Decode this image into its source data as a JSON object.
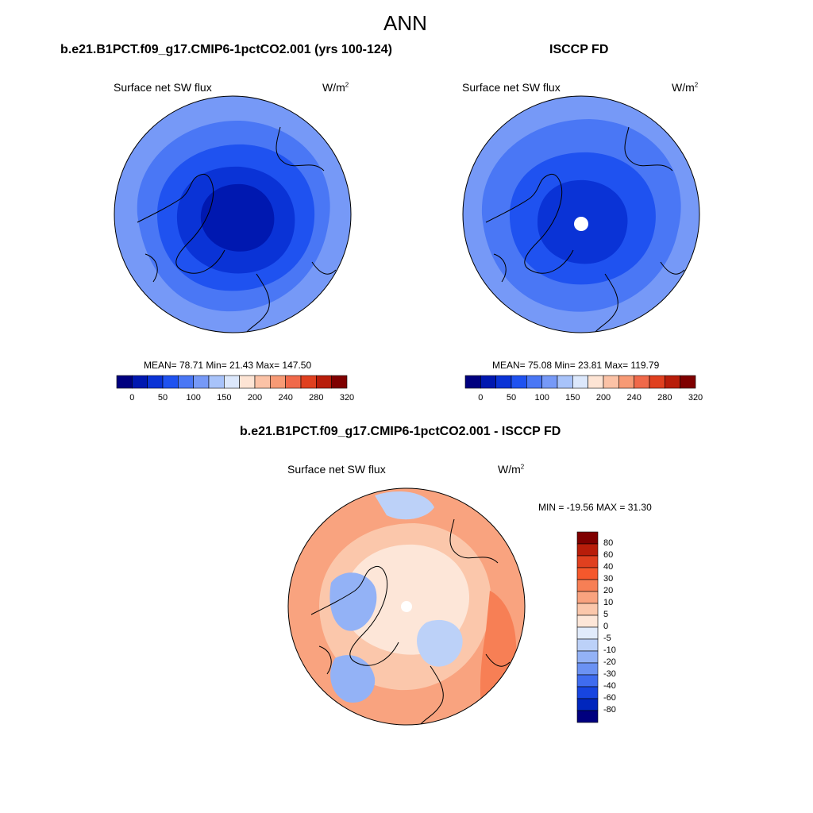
{
  "figure": {
    "title": "ANN"
  },
  "panels": {
    "model": {
      "title": "b.e21.B1PCT.f09_g17.CMIP6-1pctCO2.001 (yrs 100-124)",
      "variable": "Surface net SW flux",
      "units_base": "W/m",
      "units_exp": "2",
      "stats": "MEAN=  78.71  Min=  21.43  Max= 147.50"
    },
    "obs": {
      "title": "ISCCP FD",
      "variable": "Surface net SW flux",
      "units_base": "W/m",
      "units_exp": "2",
      "stats": "MEAN=  75.08  Min=  23.81  Max= 119.79"
    },
    "diff": {
      "title": "b.e21.B1PCT.f09_g17.CMIP6-1pctCO2.001 - ISCCP FD",
      "variable": "Surface net SW flux",
      "units_base": "W/m",
      "units_exp": "2",
      "stats": "MIN = -19.56 MAX =  31.30"
    }
  },
  "colorbars": {
    "abs": {
      "ticks": [
        "0",
        "50",
        "100",
        "150",
        "200",
        "240",
        "280",
        "320"
      ],
      "colors": [
        "#00007f",
        "#0018b0",
        "#0a33d6",
        "#1f52f0",
        "#4a77f5",
        "#7699f7",
        "#a8c3fa",
        "#dce8fc",
        "#fde4d4",
        "#fbc2a6",
        "#f79a75",
        "#f0694a",
        "#e0401f",
        "#b81d0a",
        "#7f0000"
      ]
    },
    "diff": {
      "ticks": [
        "80",
        "60",
        "40",
        "30",
        "20",
        "10",
        "5",
        "0",
        "-5",
        "-10",
        "-20",
        "-30",
        "-40",
        "-60",
        "-80"
      ],
      "colors": [
        "#7f0000",
        "#b81d0a",
        "#e0401f",
        "#f5582c",
        "#f77f55",
        "#f9a37f",
        "#fbc7ab",
        "#fde6d8",
        "#e1ebfb",
        "#bcd1f8",
        "#93b2f6",
        "#6b92f3",
        "#3f6cef",
        "#1745e0",
        "#0026bd",
        "#00007f"
      ]
    }
  },
  "map_colors": {
    "model_fill": [
      "#7699f7",
      "#4a77f5",
      "#1f52f0",
      "#0a33d6",
      "#0018b0"
    ],
    "obs_fill": [
      "#7699f7",
      "#4a77f5",
      "#1f52f0",
      "#0a33d6"
    ],
    "diff_fill": [
      "#f9a37f",
      "#fbc7ab",
      "#fde6d8",
      "#bcd1f8",
      "#93b2f6",
      "#f77f55"
    ]
  }
}
